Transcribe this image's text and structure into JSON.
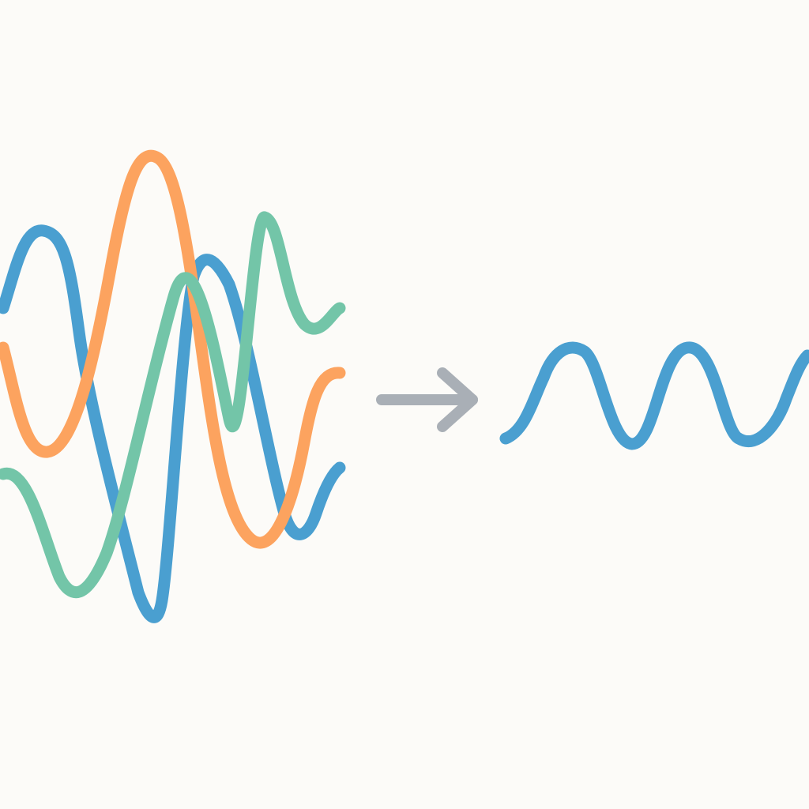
{
  "diagram": {
    "background_color": "#fcfbf8",
    "input_group": {
      "waves": [
        {
          "color": "#4a9fd0"
        },
        {
          "color": "#fca35f"
        },
        {
          "color": "#73c5a8"
        }
      ]
    },
    "arrow": {
      "icon": "right-arrow-icon",
      "color": "#a9afb6"
    },
    "output_wave": {
      "color": "#4a9fd0"
    }
  }
}
